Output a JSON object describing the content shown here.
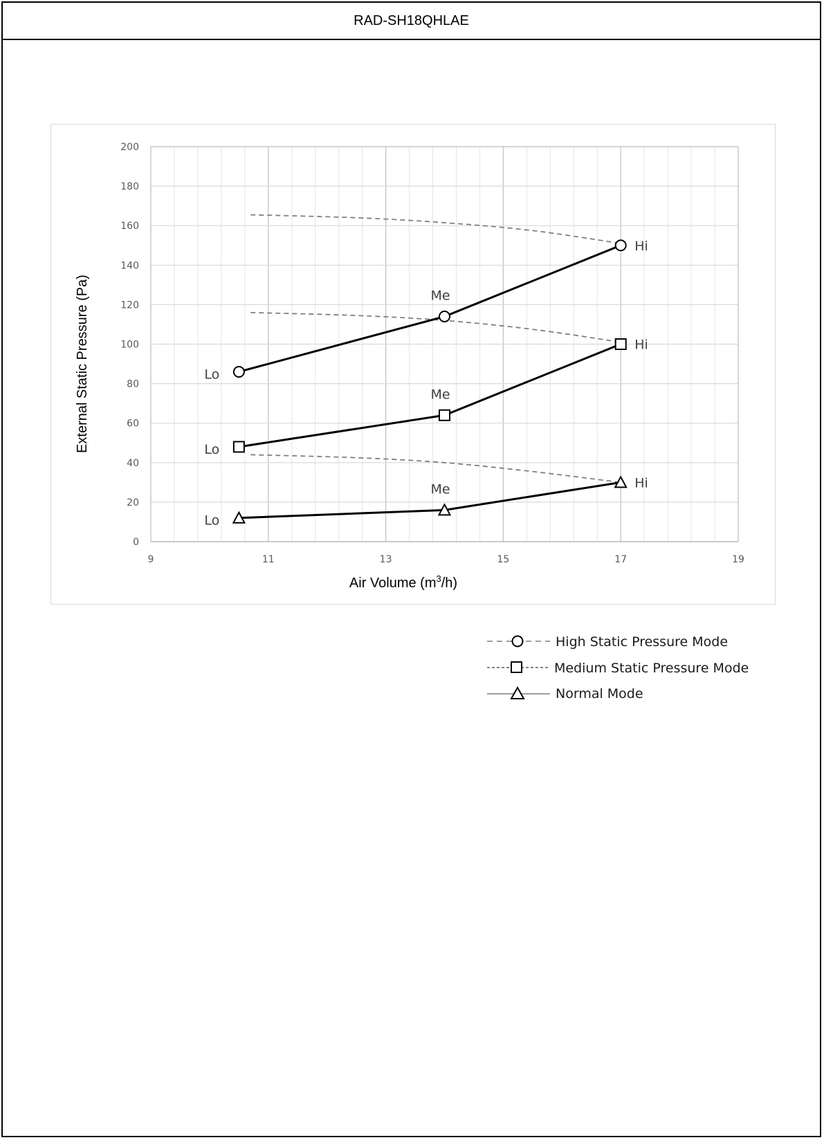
{
  "header": {
    "title": "RAD-SH18QHLAE"
  },
  "chart_data": {
    "type": "line",
    "xlabel": "Air Volume (m³/h)",
    "xlabel_parts": {
      "pre": "Air Volume (m",
      "sup": "3",
      "post": "/h)"
    },
    "ylabel": "External Static Pressure (Pa)",
    "xlim": [
      9,
      19
    ],
    "ylim": [
      0,
      200
    ],
    "x_ticks": [
      9,
      11,
      13,
      15,
      17,
      19
    ],
    "y_ticks": [
      0,
      20,
      40,
      60,
      80,
      100,
      120,
      140,
      160,
      180,
      200
    ],
    "x_minor_step": 0.4,
    "y_minor_step": 20,
    "grid": true,
    "legend_position": "bottom-right",
    "series": [
      {
        "name": "High Static Pressure Mode",
        "marker": "circle",
        "points": [
          {
            "x": 10.5,
            "y": 86,
            "label": "Lo"
          },
          {
            "x": 14.0,
            "y": 114,
            "label": "Me"
          },
          {
            "x": 17.0,
            "y": 150,
            "label": "Hi"
          }
        ]
      },
      {
        "name": "Medium Static Pressure Mode",
        "marker": "square",
        "points": [
          {
            "x": 10.5,
            "y": 48,
            "label": "Lo"
          },
          {
            "x": 14.0,
            "y": 64,
            "label": "Me"
          },
          {
            "x": 17.0,
            "y": 100,
            "label": "Hi"
          }
        ]
      },
      {
        "name": "Normal Mode",
        "marker": "triangle",
        "points": [
          {
            "x": 10.5,
            "y": 12,
            "label": "Lo"
          },
          {
            "x": 14.0,
            "y": 16,
            "label": "Me"
          },
          {
            "x": 17.0,
            "y": 30,
            "label": "Hi"
          }
        ]
      }
    ],
    "limit_curves": [
      {
        "points": [
          [
            10.7,
            165.5
          ],
          [
            12.5,
            164
          ],
          [
            14.0,
            161.5
          ],
          [
            15.5,
            157.5
          ],
          [
            17.0,
            151
          ]
        ]
      },
      {
        "points": [
          [
            10.7,
            116
          ],
          [
            12.5,
            114.5
          ],
          [
            14.0,
            112
          ],
          [
            15.5,
            107.5
          ],
          [
            17.0,
            101
          ]
        ]
      },
      {
        "points": [
          [
            10.7,
            44
          ],
          [
            12.5,
            42.5
          ],
          [
            14.0,
            40
          ],
          [
            15.5,
            35.5
          ],
          [
            17.0,
            30
          ]
        ]
      }
    ]
  }
}
